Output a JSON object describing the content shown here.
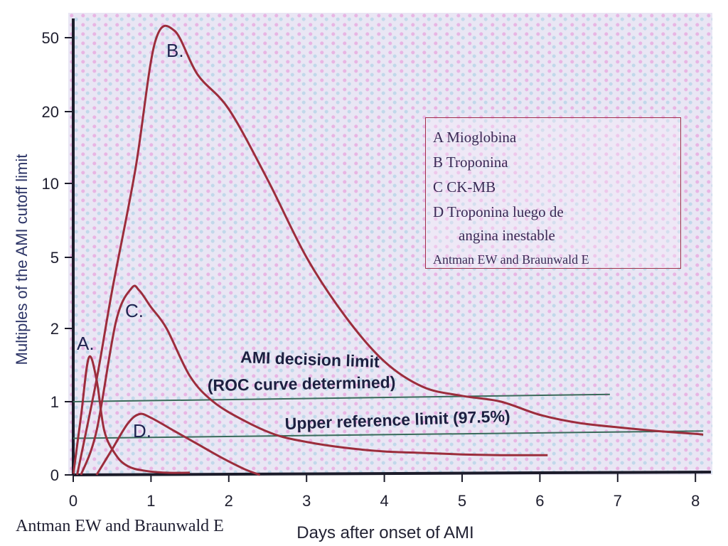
{
  "chart_data": {
    "type": "line",
    "xlabel": "Days after onset of AMI",
    "ylabel": "Multiples of the AMI cutoff limit",
    "xlim": [
      0,
      8
    ],
    "x_ticks": [
      "0",
      "1",
      "2",
      "3",
      "4",
      "5",
      "6",
      "7",
      "8"
    ],
    "y_ticks": [
      {
        "value": 0,
        "label": "0"
      },
      {
        "value": 1,
        "label": "1"
      },
      {
        "value": 2,
        "label": "2"
      },
      {
        "value": 5,
        "label": "5"
      },
      {
        "value": 10,
        "label": "10"
      },
      {
        "value": 20,
        "label": "20"
      },
      {
        "value": 50,
        "label": "50"
      }
    ],
    "y_scale": "non-linear (compressed above 1)",
    "grid": false,
    "series": [
      {
        "name": "A.",
        "color": "#9c2d3c",
        "x": [
          0,
          0.1,
          0.2,
          0.3,
          0.4,
          0.55,
          0.7,
          0.9,
          1.2,
          1.5
        ],
        "y": [
          0,
          0.8,
          1.6,
          1.3,
          0.6,
          0.27,
          0.12,
          0.06,
          0.03,
          0.03
        ]
      },
      {
        "name": "B.",
        "color": "#9c2d3c",
        "x": [
          0.05,
          0.3,
          0.5,
          0.8,
          1.05,
          1.3,
          1.6,
          2.0,
          2.5,
          3.0,
          3.5,
          4.0,
          4.5,
          5.0,
          5.5,
          6.0,
          6.5,
          7.0,
          7.5,
          8.0,
          8.1
        ],
        "y": [
          0,
          1.3,
          3.6,
          12,
          48,
          52,
          35,
          21,
          10.5,
          5,
          2.5,
          1.55,
          1.2,
          1.08,
          1.0,
          0.82,
          0.71,
          0.65,
          0.6,
          0.56,
          0.55
        ]
      },
      {
        "name": "C.",
        "color": "#9c2d3c",
        "x": [
          0.1,
          0.3,
          0.55,
          0.75,
          0.85,
          1.0,
          1.2,
          1.5,
          1.8,
          2.2,
          2.6,
          3.0,
          3.5,
          4.0,
          4.5,
          5.0,
          5.5,
          6.1
        ],
        "y": [
          0,
          0.6,
          2.3,
          3.7,
          3.6,
          2.9,
          2.0,
          1.35,
          1.0,
          0.74,
          0.55,
          0.45,
          0.37,
          0.32,
          0.3,
          0.28,
          0.27,
          0.27
        ]
      },
      {
        "name": "D.",
        "color": "#9c2d3c",
        "x": [
          0.3,
          0.5,
          0.7,
          0.85,
          1.0,
          1.3,
          1.6,
          1.9,
          2.2,
          2.4
        ],
        "y": [
          0,
          0.35,
          0.7,
          0.83,
          0.78,
          0.6,
          0.42,
          0.24,
          0.08,
          0
        ]
      }
    ],
    "reference_lines": [
      {
        "label": "AMI decision limit",
        "label2": "(ROC curve determined)",
        "color": "#3a6a5a",
        "x0": 0,
        "x1": 6.9,
        "y0": 1.0,
        "y1": 1.1
      },
      {
        "label": "Upper reference limit (97.5%)",
        "color": "#3a6a5a",
        "x0": 0,
        "x1": 8.1,
        "y0": 0.5,
        "y1": 0.6
      }
    ],
    "annotations": [
      "AMI decision limit",
      "(ROC curve determined)",
      "Upper reference limit (97.5%)"
    ]
  },
  "legend": {
    "items": [
      "A Mioglobina",
      "B Troponina",
      "C CK-MB",
      "D Troponina  luego de",
      "angina inestable"
    ],
    "source": "Antman EW and Braunwald E"
  },
  "credit": "Antman EW and Braunwald E"
}
